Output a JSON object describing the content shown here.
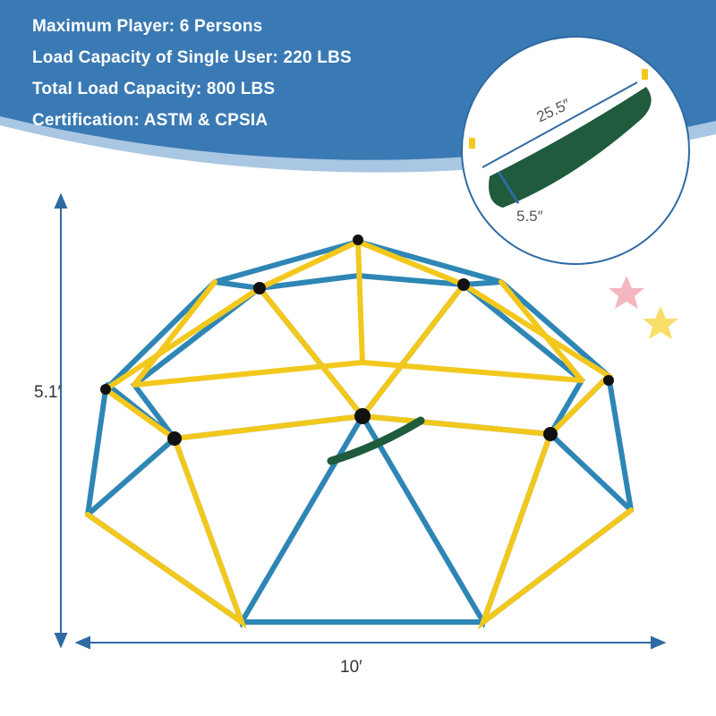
{
  "specs": [
    {
      "label": "Maximum Player: 6 Persons"
    },
    {
      "label": "Load Capacity of Single User: 220 LBS"
    },
    {
      "label": "Total Load Capacity: 800 LBS"
    },
    {
      "label": "Certification: ASTM & CPSIA"
    }
  ],
  "swing": {
    "length": "25.5″",
    "width": "5.5″"
  },
  "dimensions": {
    "height": "5.1′",
    "width": "10′"
  },
  "colors": {
    "header": "#3a7ab4",
    "band": "#a9c6e2",
    "blue_bar": "#2e86b5",
    "yellow_bar": "#f2c81d",
    "seat": "#1f5b3c",
    "arrow": "#2f6aa3"
  }
}
